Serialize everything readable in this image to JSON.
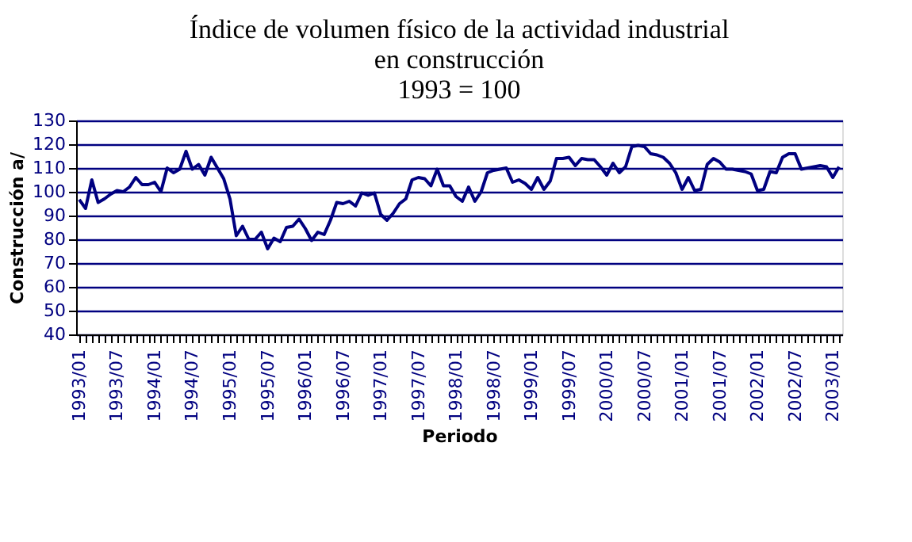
{
  "chart_data": {
    "type": "line",
    "title": "Índice de volumen físico de la actividad industrial en construcción",
    "subtitle": "1993 = 100",
    "xlabel": "Periodo",
    "ylabel": "Construcción a/",
    "categories": [
      "1993/01",
      null,
      null,
      null,
      null,
      null,
      "1993/07",
      null,
      null,
      null,
      null,
      null,
      "1994/01",
      null,
      null,
      null,
      null,
      null,
      "1994/07",
      null,
      null,
      null,
      null,
      null,
      "1995/01",
      null,
      null,
      null,
      null,
      null,
      "1995/07",
      null,
      null,
      null,
      null,
      null,
      "1996/01",
      null,
      null,
      null,
      null,
      null,
      "1996/07",
      null,
      null,
      null,
      null,
      null,
      "1997/01",
      null,
      null,
      null,
      null,
      null,
      "1997/07",
      null,
      null,
      null,
      null,
      null,
      "1998/01",
      null,
      null,
      null,
      null,
      null,
      "1998/07",
      null,
      null,
      null,
      null,
      null,
      "1999/01",
      null,
      null,
      null,
      null,
      null,
      "1999/07",
      null,
      null,
      null,
      null,
      null,
      "2000/01",
      null,
      null,
      null,
      null,
      null,
      "2000/07",
      null,
      null,
      null,
      null,
      null,
      "2001/01",
      null,
      null,
      null,
      null,
      null,
      "2001/07",
      null,
      null,
      null,
      null,
      null,
      "2002/01",
      null,
      null,
      null,
      null,
      null,
      "2002/07",
      null,
      null,
      null,
      null,
      null,
      "2003/01",
      null
    ],
    "series": [
      {
        "color": "#000080",
        "values": [
          96.7,
          93,
          105,
          95.5,
          97,
          99,
          100.5,
          100,
          102,
          106,
          103,
          103,
          104,
          100,
          110,
          108,
          109.5,
          117,
          109.5,
          111.5,
          107,
          114.5,
          110,
          105.5,
          97,
          81.5,
          85.5,
          80,
          80,
          83,
          76,
          80.5,
          79,
          85,
          85.5,
          88.5,
          84.5,
          79.5,
          83,
          82,
          88,
          95.5,
          95,
          96,
          94,
          99.5,
          98.5,
          99.5,
          90.5,
          88,
          91,
          95,
          97,
          105,
          106,
          105.5,
          102.5,
          109.5,
          102.5,
          102.5,
          98,
          96,
          102,
          96,
          100,
          108,
          109,
          109.5,
          110,
          104,
          105,
          103.5,
          101,
          106,
          101,
          104.5,
          114,
          114,
          114.5,
          111,
          114,
          113.5,
          113.5,
          110.5,
          107,
          112,
          108,
          110.5,
          119,
          119.5,
          119,
          116,
          115.5,
          114.5,
          112,
          108,
          101,
          106,
          100.5,
          101,
          111.5,
          114,
          112.5,
          109.5,
          109.5,
          109,
          108.5,
          107.5,
          100.5,
          101,
          108.5,
          108,
          114.5,
          116,
          116,
          109.5,
          110,
          110.5,
          111,
          110.5,
          106,
          110.5
        ]
      }
    ],
    "ylim": [
      40,
      130
    ],
    "yticks": [
      40,
      50,
      60,
      70,
      80,
      90,
      100,
      110,
      120,
      130
    ],
    "grid": "y",
    "marker": "none",
    "line_style": "solid"
  }
}
